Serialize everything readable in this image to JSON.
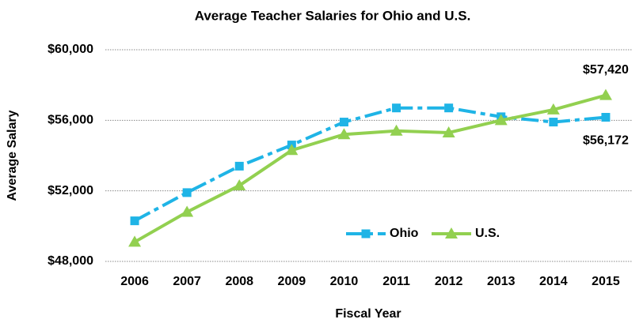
{
  "chart_data": {
    "type": "line",
    "title": "Average Teacher Salaries for Ohio and U.S.",
    "x_label": "Fiscal Year",
    "y_label": "Average Salary",
    "categories": [
      "2006",
      "2007",
      "2008",
      "2009",
      "2010",
      "2011",
      "2012",
      "2013",
      "2014",
      "2015"
    ],
    "series": [
      {
        "name": "Ohio",
        "color": "#1fb4e6",
        "marker": "square",
        "dash": "dash-dot",
        "values": [
          50300,
          51900,
          53400,
          54600,
          55900,
          56700,
          56700,
          56200,
          55900,
          56172
        ],
        "value_labels": [
          null,
          null,
          null,
          null,
          null,
          null,
          null,
          null,
          null,
          "$56,172"
        ]
      },
      {
        "name": "U.S.",
        "color": "#92d050",
        "marker": "triangle",
        "dash": "solid",
        "values": [
          49100,
          50800,
          52300,
          54300,
          55200,
          55400,
          55300,
          56000,
          56600,
          57420
        ],
        "value_labels": [
          null,
          null,
          null,
          null,
          null,
          null,
          null,
          null,
          null,
          "$57,420"
        ]
      }
    ],
    "ylim": [
      48000,
      60000
    ],
    "yticks": [
      {
        "value": 48000,
        "label": "$48,000"
      },
      {
        "value": 52000,
        "label": "$52,000"
      },
      {
        "value": 56000,
        "label": "$56,000"
      },
      {
        "value": 60000,
        "label": "$60,000"
      }
    ],
    "grid": true,
    "legend": "inside-bottom-right"
  }
}
